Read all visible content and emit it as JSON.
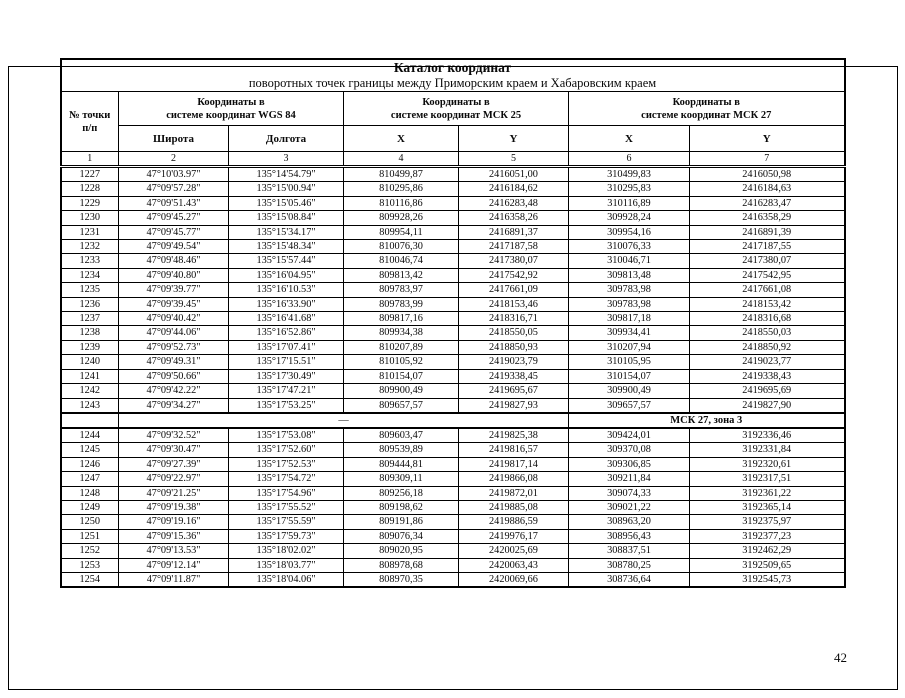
{
  "page": {
    "number": "42"
  },
  "table": {
    "title": "Каталог координат",
    "subtitle": "поворотных точек границы между  Приморским краем и Хабаровским краем",
    "headers": {
      "point_line1": "№ точки",
      "point_line2": "п/п",
      "lat": "Широта",
      "lon": "Долгота",
      "x_msk25": "X",
      "y_msk25": "Y",
      "x_msk27": "X",
      "y_msk27": "Y"
    },
    "col_groups": [
      {
        "line1": "Координаты в",
        "line2": "системе координат WGS 84"
      },
      {
        "line1": "Координаты в",
        "line2": "системе координат МСК 25"
      },
      {
        "line1": "Координаты в",
        "line2": "системе координат МСК 27"
      }
    ],
    "col_numbers": [
      "1",
      "2",
      "3",
      "4",
      "5",
      "6",
      "7"
    ],
    "rows_part1": [
      [
        "1227",
        "47°10'03.97\"",
        "135°14'54.79\"",
        "810499,87",
        "2416051,00",
        "310499,83",
        "2416050,98"
      ],
      [
        "1228",
        "47°09'57.28\"",
        "135°15'00.94\"",
        "810295,86",
        "2416184,62",
        "310295,83",
        "2416184,63"
      ],
      [
        "1229",
        "47°09'51.43\"",
        "135°15'05.46\"",
        "810116,86",
        "2416283,48",
        "310116,89",
        "2416283,47"
      ],
      [
        "1230",
        "47°09'45.27\"",
        "135°15'08.84\"",
        "809928,26",
        "2416358,26",
        "309928,24",
        "2416358,29"
      ],
      [
        "1231",
        "47°09'45.77\"",
        "135°15'34.17\"",
        "809954,11",
        "2416891,37",
        "309954,16",
        "2416891,39"
      ],
      [
        "1232",
        "47°09'49.54\"",
        "135°15'48.34\"",
        "810076,30",
        "2417187,58",
        "310076,33",
        "2417187,55"
      ],
      [
        "1233",
        "47°09'48.46\"",
        "135°15'57.44\"",
        "810046,74",
        "2417380,07",
        "310046,71",
        "2417380,07"
      ],
      [
        "1234",
        "47°09'40.80\"",
        "135°16'04.95\"",
        "809813,42",
        "2417542,92",
        "309813,48",
        "2417542,95"
      ],
      [
        "1235",
        "47°09'39.77\"",
        "135°16'10.53\"",
        "809783,97",
        "2417661,09",
        "309783,98",
        "2417661,08"
      ],
      [
        "1236",
        "47°09'39.45\"",
        "135°16'33.90\"",
        "809783,99",
        "2418153,46",
        "309783,98",
        "2418153,42"
      ],
      [
        "1237",
        "47°09'40.42\"",
        "135°16'41.68\"",
        "809817,16",
        "2418316,71",
        "309817,18",
        "2418316,68"
      ],
      [
        "1238",
        "47°09'44.06\"",
        "135°16'52.86\"",
        "809934,38",
        "2418550,05",
        "309934,41",
        "2418550,03"
      ],
      [
        "1239",
        "47°09'52.73\"",
        "135°17'07.41\"",
        "810207,89",
        "2418850,93",
        "310207,94",
        "2418850,92"
      ],
      [
        "1240",
        "47°09'49.31\"",
        "135°17'15.51\"",
        "810105,92",
        "2419023,79",
        "310105,95",
        "2419023,77"
      ],
      [
        "1241",
        "47°09'50.66\"",
        "135°17'30.49\"",
        "810154,07",
        "2419338,45",
        "310154,07",
        "2419338,43"
      ],
      [
        "1242",
        "47°09'42.22\"",
        "135°17'47.21\"",
        "809900,49",
        "2419695,67",
        "309900,49",
        "2419695,69"
      ],
      [
        "1243",
        "47°09'34.27\"",
        "135°17'53.25\"",
        "809657,57",
        "2419827,93",
        "309657,57",
        "2419827,90"
      ]
    ],
    "separator": {
      "dash": "—",
      "zone_label": "МСК 27, зона 3"
    },
    "rows_part2": [
      [
        "1244",
        "47°09'32.52\"",
        "135°17'53.08\"",
        "809603,47",
        "2419825,38",
        "309424,01",
        "3192336,46"
      ],
      [
        "1245",
        "47°09'30.47\"",
        "135°17'52.60\"",
        "809539,89",
        "2419816,57",
        "309370,08",
        "3192331,84"
      ],
      [
        "1246",
        "47°09'27.39\"",
        "135°17'52.53\"",
        "809444,81",
        "2419817,14",
        "309306,85",
        "3192320,61"
      ],
      [
        "1247",
        "47°09'22.97\"",
        "135°17'54.72\"",
        "809309,11",
        "2419866,08",
        "309211,84",
        "3192317,51"
      ],
      [
        "1248",
        "47°09'21.25\"",
        "135°17'54.96\"",
        "809256,18",
        "2419872,01",
        "309074,33",
        "3192361,22"
      ],
      [
        "1249",
        "47°09'19.38\"",
        "135°17'55.52\"",
        "809198,62",
        "2419885,08",
        "309021,22",
        "3192365,14"
      ],
      [
        "1250",
        "47°09'19.16\"",
        "135°17'55.59\"",
        "809191,86",
        "2419886,59",
        "308963,20",
        "3192375,97"
      ],
      [
        "1251",
        "47°09'15.36\"",
        "135°17'59.73\"",
        "809076,34",
        "2419976,17",
        "308956,43",
        "3192377,23"
      ],
      [
        "1252",
        "47°09'13.53\"",
        "135°18'02.02\"",
        "809020,95",
        "2420025,69",
        "308837,51",
        "3192462,29"
      ],
      [
        "1253",
        "47°09'12.14\"",
        "135°18'03.77\"",
        "808978,68",
        "2420063,43",
        "308780,25",
        "3192509,65"
      ],
      [
        "1254",
        "47°09'11.87\"",
        "135°18'04.06\"",
        "808970,35",
        "2420069,66",
        "308736,64",
        "3192545,73"
      ]
    ]
  }
}
